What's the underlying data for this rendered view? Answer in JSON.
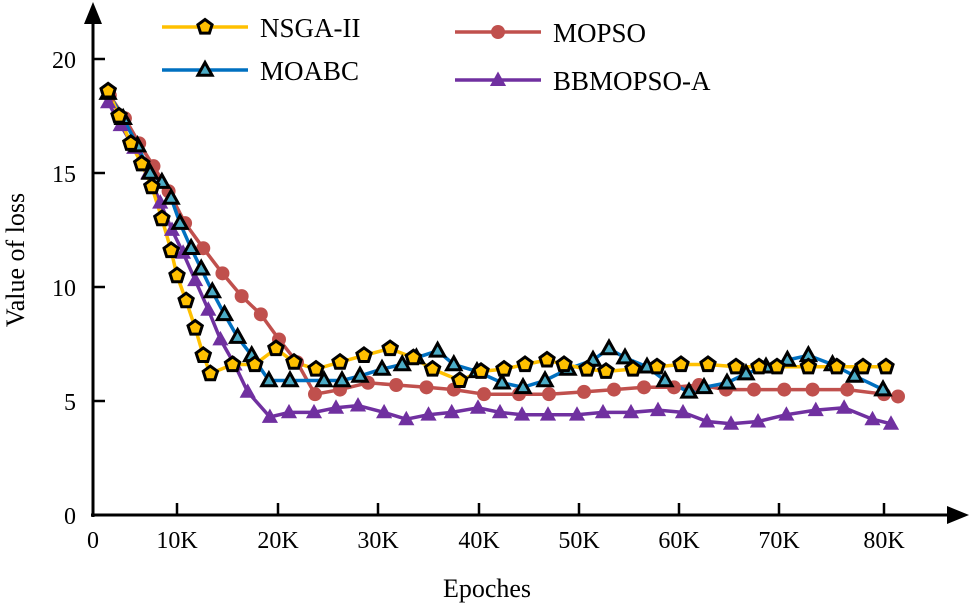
{
  "chart_data": {
    "type": "line",
    "title": "",
    "xlabel": "Epoches",
    "ylabel": "Value of loss",
    "xlim": [
      0,
      85000
    ],
    "ylim": [
      0,
      22
    ],
    "x_ticks": [
      {
        "value": 0,
        "label": "0"
      },
      {
        "value": 10000,
        "label": "10K"
      },
      {
        "value": 20000,
        "label": "20K"
      },
      {
        "value": 30000,
        "label": "30K"
      },
      {
        "value": 40000,
        "label": "40K"
      },
      {
        "value": 50000,
        "label": "50K"
      },
      {
        "value": 60000,
        "label": "60K"
      },
      {
        "value": 70000,
        "label": "70K"
      },
      {
        "value": 80000,
        "label": "80K"
      }
    ],
    "y_ticks": [
      {
        "value": 0,
        "label": "0"
      },
      {
        "value": 5,
        "label": "5"
      },
      {
        "value": 10,
        "label": "10"
      },
      {
        "value": 15,
        "label": "15"
      },
      {
        "value": 20,
        "label": "20"
      }
    ],
    "grid": false,
    "legend_position": "top",
    "series": [
      {
        "name": "NSGA-II",
        "color": "#FFC000",
        "marker": "pentagon",
        "points": [
          [
            1800,
            18.6
          ],
          [
            3100,
            17.5
          ],
          [
            4500,
            16.3
          ],
          [
            5800,
            15.4
          ],
          [
            7000,
            14.4
          ],
          [
            8200,
            13.0
          ],
          [
            9300,
            11.6
          ],
          [
            10000,
            10.5
          ],
          [
            10900,
            9.4
          ],
          [
            11800,
            8.2
          ],
          [
            12600,
            7.0
          ],
          [
            13300,
            6.2
          ],
          [
            15500,
            6.6
          ],
          [
            17700,
            6.6
          ],
          [
            19800,
            7.3
          ],
          [
            21600,
            6.7
          ],
          [
            23800,
            6.4
          ],
          [
            26200,
            6.7
          ],
          [
            28600,
            7.0
          ],
          [
            31200,
            7.3
          ],
          [
            33500,
            6.9
          ],
          [
            35400,
            6.4
          ],
          [
            38100,
            5.9
          ],
          [
            40200,
            6.3
          ],
          [
            42500,
            6.4
          ],
          [
            44600,
            6.6
          ],
          [
            46800,
            6.8
          ],
          [
            48500,
            6.6
          ],
          [
            50800,
            6.4
          ],
          [
            52700,
            6.3
          ],
          [
            55400,
            6.4
          ],
          [
            57800,
            6.5
          ],
          [
            60200,
            6.6
          ],
          [
            62900,
            6.6
          ],
          [
            65700,
            6.5
          ],
          [
            68000,
            6.5
          ],
          [
            69800,
            6.5
          ],
          [
            72800,
            6.5
          ],
          [
            75500,
            6.5
          ],
          [
            78000,
            6.5
          ],
          [
            80200,
            6.5
          ]
        ]
      },
      {
        "name": "MOABC",
        "color": "#0070C0",
        "marker": "triangle-open",
        "points": [
          [
            1800,
            18.5
          ],
          [
            3600,
            17.4
          ],
          [
            5300,
            16.2
          ],
          [
            6800,
            15.0
          ],
          [
            8200,
            14.6
          ],
          [
            9300,
            13.9
          ],
          [
            10300,
            12.8
          ],
          [
            11400,
            11.7
          ],
          [
            12400,
            10.8
          ],
          [
            13500,
            9.8
          ],
          [
            14700,
            8.8
          ],
          [
            16000,
            7.8
          ],
          [
            17400,
            7.0
          ],
          [
            19100,
            5.9
          ],
          [
            21200,
            5.9
          ],
          [
            24600,
            5.9
          ],
          [
            26400,
            5.9
          ],
          [
            28200,
            6.1
          ],
          [
            30400,
            6.4
          ],
          [
            32400,
            6.6
          ],
          [
            33800,
            6.9
          ],
          [
            35900,
            7.2
          ],
          [
            37500,
            6.6
          ],
          [
            39800,
            6.3
          ],
          [
            42300,
            5.8
          ],
          [
            44400,
            5.6
          ],
          [
            46600,
            5.9
          ],
          [
            48900,
            6.4
          ],
          [
            51400,
            6.8
          ],
          [
            53000,
            7.3
          ],
          [
            54600,
            6.9
          ],
          [
            56800,
            6.5
          ],
          [
            58600,
            5.9
          ],
          [
            61000,
            5.4
          ],
          [
            62500,
            5.6
          ],
          [
            64800,
            5.8
          ],
          [
            66700,
            6.2
          ],
          [
            68700,
            6.5
          ],
          [
            70800,
            6.8
          ],
          [
            72800,
            7.0
          ],
          [
            75100,
            6.6
          ],
          [
            77200,
            6.1
          ],
          [
            79900,
            5.5
          ]
        ]
      },
      {
        "name": "MOPSO",
        "color": "#C0504D",
        "marker": "circle",
        "points": [
          [
            2000,
            18.4
          ],
          [
            3800,
            17.4
          ],
          [
            5500,
            16.3
          ],
          [
            7200,
            15.3
          ],
          [
            9000,
            14.2
          ],
          [
            10800,
            12.8
          ],
          [
            12600,
            11.7
          ],
          [
            14500,
            10.6
          ],
          [
            16400,
            9.6
          ],
          [
            18300,
            8.8
          ],
          [
            20100,
            7.7
          ],
          [
            21900,
            6.7
          ],
          [
            23700,
            5.3
          ],
          [
            26200,
            5.5
          ],
          [
            29000,
            5.8
          ],
          [
            31800,
            5.7
          ],
          [
            34800,
            5.6
          ],
          [
            37500,
            5.5
          ],
          [
            40500,
            5.3
          ],
          [
            44000,
            5.3
          ],
          [
            47000,
            5.3
          ],
          [
            50500,
            5.4
          ],
          [
            53500,
            5.5
          ],
          [
            56500,
            5.6
          ],
          [
            59500,
            5.6
          ],
          [
            62000,
            5.7
          ],
          [
            64700,
            5.5
          ],
          [
            67500,
            5.5
          ],
          [
            70500,
            5.5
          ],
          [
            73200,
            5.5
          ],
          [
            76500,
            5.5
          ],
          [
            80000,
            5.3
          ],
          [
            81400,
            5.2
          ]
        ]
      },
      {
        "name": "BBMOPSO-A",
        "color": "#7030A0",
        "marker": "triangle-filled",
        "points": [
          [
            1800,
            18.1
          ],
          [
            3300,
            17.1
          ],
          [
            4900,
            16.1
          ],
          [
            6600,
            15.0
          ],
          [
            8000,
            13.7
          ],
          [
            9400,
            12.5
          ],
          [
            10600,
            11.5
          ],
          [
            11800,
            10.3
          ],
          [
            13100,
            9.0
          ],
          [
            14300,
            7.7
          ],
          [
            15700,
            6.6
          ],
          [
            17000,
            5.4
          ],
          [
            19200,
            4.3
          ],
          [
            21100,
            4.5
          ],
          [
            23600,
            4.5
          ],
          [
            25800,
            4.7
          ],
          [
            28000,
            4.8
          ],
          [
            30600,
            4.5
          ],
          [
            32800,
            4.2
          ],
          [
            35000,
            4.4
          ],
          [
            37300,
            4.5
          ],
          [
            39900,
            4.7
          ],
          [
            42100,
            4.5
          ],
          [
            44300,
            4.4
          ],
          [
            46900,
            4.4
          ],
          [
            49800,
            4.4
          ],
          [
            52400,
            4.5
          ],
          [
            55200,
            4.5
          ],
          [
            57900,
            4.6
          ],
          [
            60400,
            4.5
          ],
          [
            62800,
            4.1
          ],
          [
            65200,
            4.0
          ],
          [
            67900,
            4.1
          ],
          [
            70700,
            4.4
          ],
          [
            73500,
            4.6
          ],
          [
            76200,
            4.7
          ],
          [
            78900,
            4.2
          ],
          [
            80700,
            4.0
          ]
        ]
      }
    ]
  }
}
